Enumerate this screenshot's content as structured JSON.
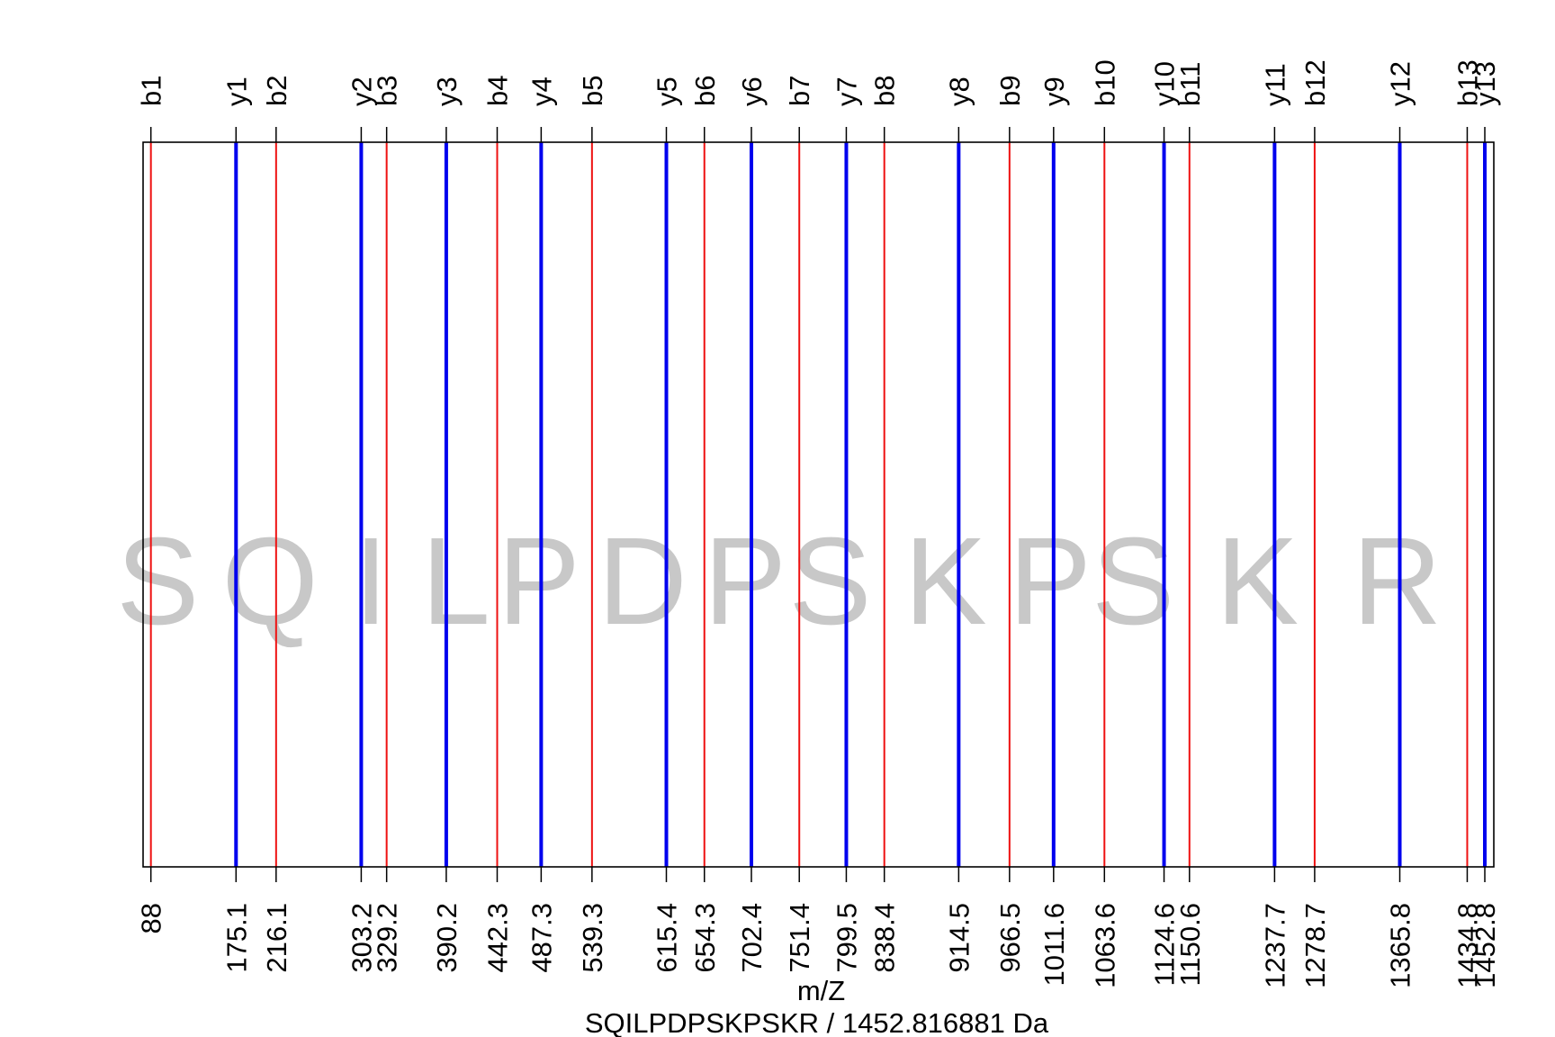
{
  "chart_data": {
    "type": "spectrum",
    "xlabel": "m/Z",
    "subtitle": "SQILPDPSKPSKR / 1452.816881 Da",
    "xlim": [
      80,
      1462
    ],
    "colors": {
      "b": "#ee1111",
      "y": "#0000ee",
      "residue": "#c8c8c8"
    },
    "ions": [
      {
        "label": "b1",
        "mz": 88.0,
        "mz_label": "88",
        "series": "b"
      },
      {
        "label": "y1",
        "mz": 175.1,
        "mz_label": "175.1",
        "series": "y"
      },
      {
        "label": "b2",
        "mz": 216.1,
        "mz_label": "216.1",
        "series": "b"
      },
      {
        "label": "y2",
        "mz": 303.2,
        "mz_label": "303.2",
        "series": "y"
      },
      {
        "label": "b3",
        "mz": 329.2,
        "mz_label": "329.2",
        "series": "b"
      },
      {
        "label": "y3",
        "mz": 390.2,
        "mz_label": "390.2",
        "series": "y"
      },
      {
        "label": "b4",
        "mz": 442.3,
        "mz_label": "442.3",
        "series": "b"
      },
      {
        "label": "y4",
        "mz": 487.3,
        "mz_label": "487.3",
        "series": "y"
      },
      {
        "label": "b5",
        "mz": 539.3,
        "mz_label": "539.3",
        "series": "b"
      },
      {
        "label": "y5",
        "mz": 615.4,
        "mz_label": "615.4",
        "series": "y"
      },
      {
        "label": "b6",
        "mz": 654.3,
        "mz_label": "654.3",
        "series": "b"
      },
      {
        "label": "y6",
        "mz": 702.4,
        "mz_label": "702.4",
        "series": "y"
      },
      {
        "label": "b7",
        "mz": 751.4,
        "mz_label": "751.4",
        "series": "b"
      },
      {
        "label": "y7",
        "mz": 799.5,
        "mz_label": "799.5",
        "series": "y"
      },
      {
        "label": "b8",
        "mz": 838.4,
        "mz_label": "838.4",
        "series": "b"
      },
      {
        "label": "y8",
        "mz": 914.5,
        "mz_label": "914.5",
        "series": "y"
      },
      {
        "label": "b9",
        "mz": 966.5,
        "mz_label": "966.5",
        "series": "b"
      },
      {
        "label": "y9",
        "mz": 1011.6,
        "mz_label": "1011.6",
        "series": "y"
      },
      {
        "label": "b10",
        "mz": 1063.6,
        "mz_label": "1063.6",
        "series": "b"
      },
      {
        "label": "y10",
        "mz": 1124.6,
        "mz_label": "1124.6",
        "series": "y"
      },
      {
        "label": "b11",
        "mz": 1150.6,
        "mz_label": "1150.6",
        "series": "b"
      },
      {
        "label": "y11",
        "mz": 1237.7,
        "mz_label": "1237.7",
        "series": "y"
      },
      {
        "label": "b12",
        "mz": 1278.7,
        "mz_label": "1278.7",
        "series": "b"
      },
      {
        "label": "y12",
        "mz": 1365.8,
        "mz_label": "1365.8",
        "series": "y"
      },
      {
        "label": "b13",
        "mz": 1434.8,
        "mz_label": "1434.8",
        "series": "b"
      },
      {
        "label": "y13",
        "mz": 1452.8,
        "mz_label": "1452.8",
        "series": "y"
      }
    ],
    "residues": [
      {
        "letter": "S",
        "mz": 95
      },
      {
        "letter": "Q",
        "mz": 210
      },
      {
        "letter": "I",
        "mz": 313
      },
      {
        "letter": "L",
        "mz": 400
      },
      {
        "letter": "P",
        "mz": 485
      },
      {
        "letter": "D",
        "mz": 591
      },
      {
        "letter": "P",
        "mz": 696
      },
      {
        "letter": "S",
        "mz": 783
      },
      {
        "letter": "K",
        "mz": 901
      },
      {
        "letter": "P",
        "mz": 1008
      },
      {
        "letter": "S",
        "mz": 1093
      },
      {
        "letter": "K",
        "mz": 1220
      },
      {
        "letter": "R",
        "mz": 1363
      }
    ]
  }
}
